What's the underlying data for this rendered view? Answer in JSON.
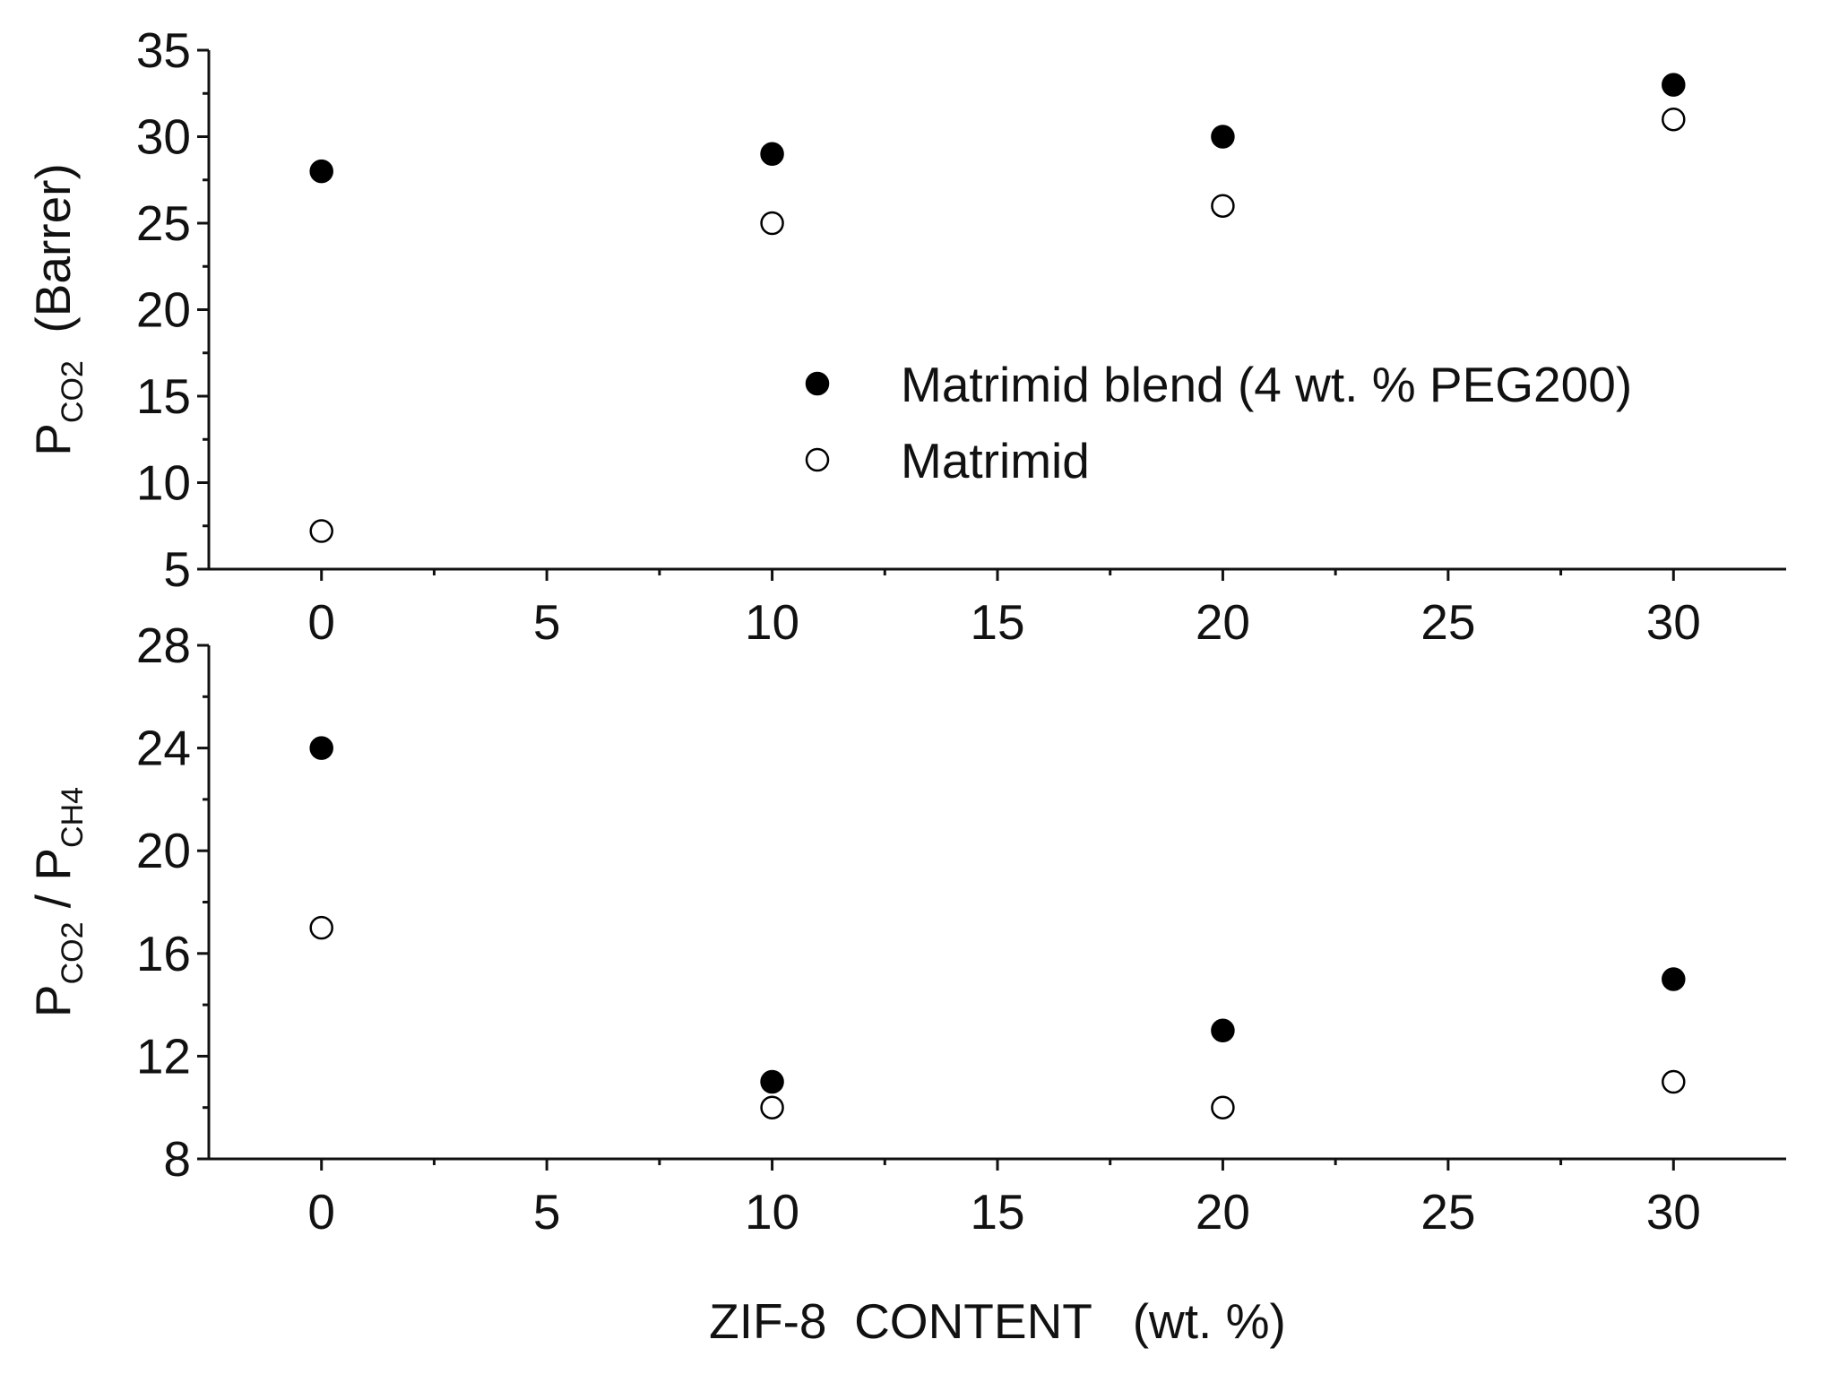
{
  "chart_data": [
    {
      "type": "scatter",
      "ylabel": [
        {
          "text": "P"
        },
        {
          "text": "CO2",
          "sub": true
        },
        {
          "text": "  (Barrer)"
        }
      ],
      "xlim": [
        -2.5,
        32.5
      ],
      "xticks": [
        0,
        5,
        10,
        15,
        20,
        25,
        30
      ],
      "ylim": [
        5,
        35
      ],
      "yticks": [
        5,
        10,
        15,
        20,
        25,
        30,
        35
      ],
      "minor_ticks": true,
      "x": [
        0,
        10,
        20,
        30
      ],
      "series": [
        {
          "name": "Matrimid blend (4 wt. % PEG200)",
          "color": "#000000",
          "marker": "filled",
          "values": [
            28,
            29,
            30,
            33
          ]
        },
        {
          "name": "Matrimid",
          "color": "#000000",
          "marker": "open",
          "values": [
            7.2,
            25,
            26,
            31
          ]
        }
      ],
      "legend": "center-right"
    },
    {
      "type": "scatter",
      "xlabel": "ZIF-8  CONTENT   (wt. %)",
      "ylabel": [
        {
          "text": "P"
        },
        {
          "text": "CO2",
          "sub": true
        },
        {
          "text": " / P"
        },
        {
          "text": "CH4",
          "sub": true
        }
      ],
      "xlim": [
        -2.5,
        32.5
      ],
      "xticks": [
        0,
        5,
        10,
        15,
        20,
        25,
        30
      ],
      "ylim": [
        8,
        28
      ],
      "yticks": [
        8,
        12,
        16,
        20,
        24,
        28
      ],
      "minor_ticks": true,
      "x": [
        0,
        10,
        20,
        30
      ],
      "series": [
        {
          "color": "#000000",
          "marker": "filled",
          "values": [
            24,
            11,
            13,
            15
          ]
        },
        {
          "color": "#000000",
          "marker": "open",
          "values": [
            17,
            10,
            10,
            11
          ]
        }
      ]
    }
  ]
}
